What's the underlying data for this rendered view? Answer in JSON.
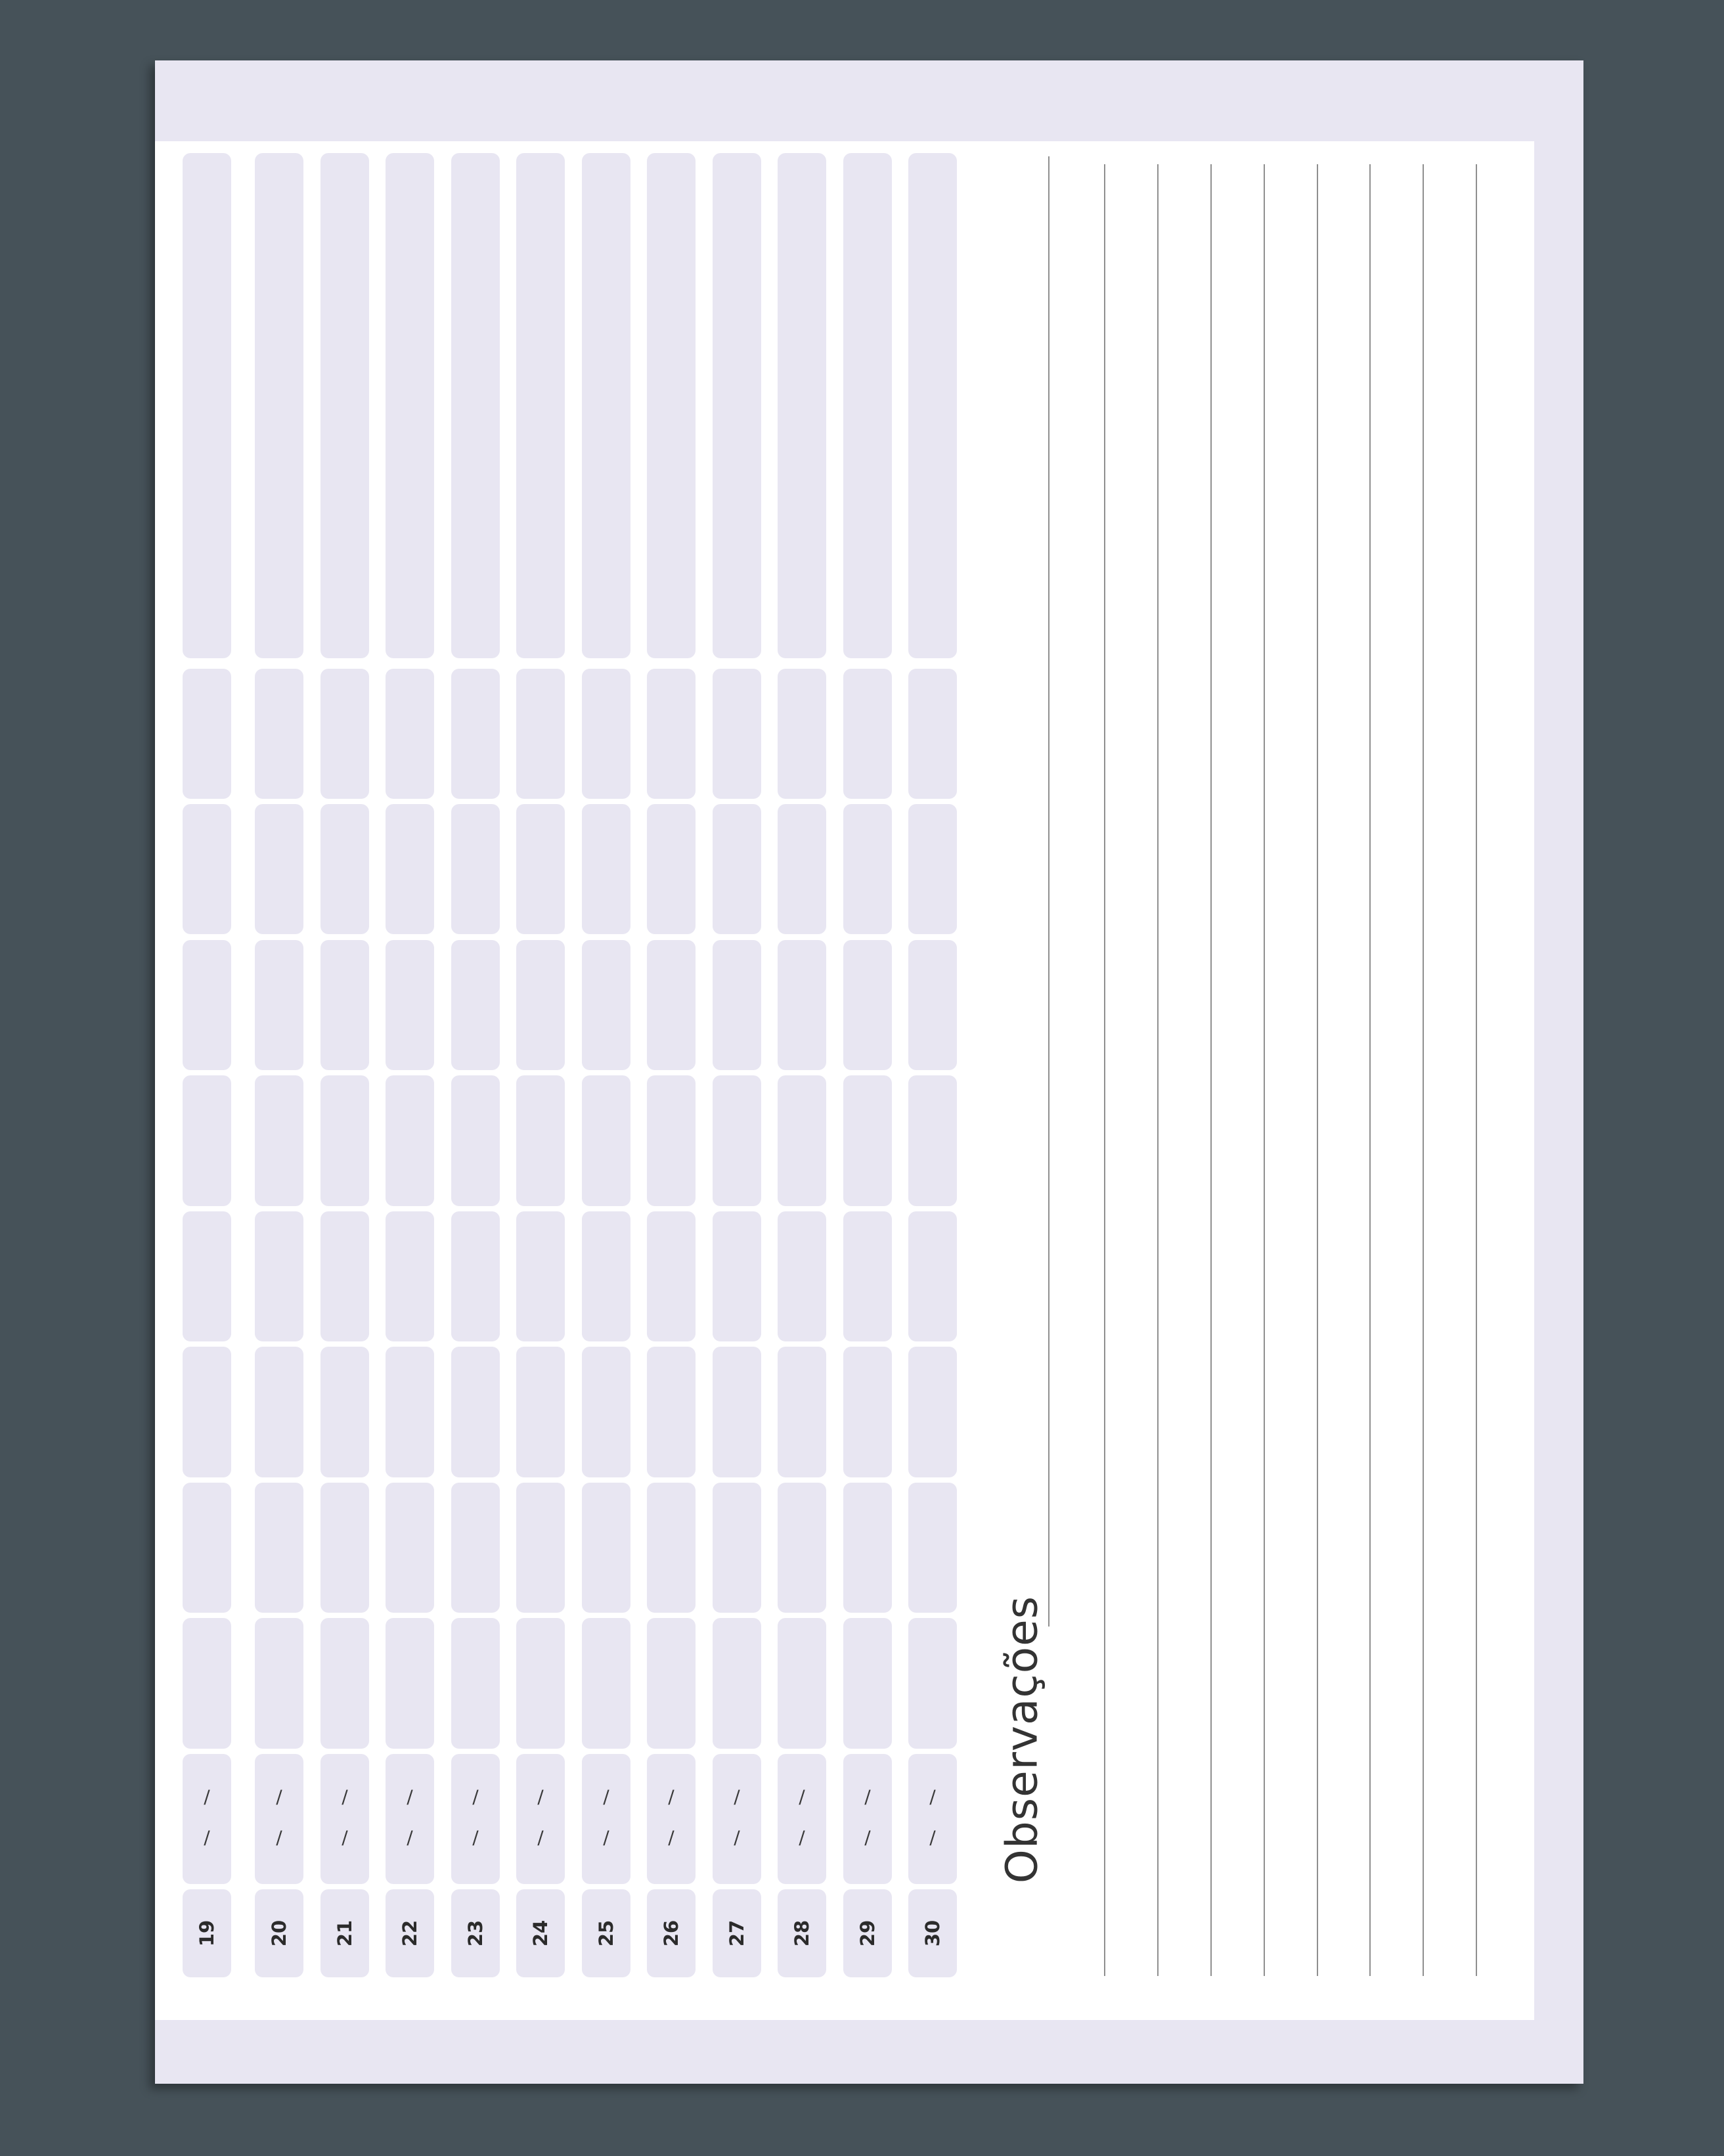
{
  "planner": {
    "days": [
      "19",
      "20",
      "21",
      "22",
      "23",
      "24",
      "25",
      "26",
      "27",
      "28",
      "29",
      "30"
    ],
    "date_separator": "/",
    "observations_title": "Observações"
  }
}
